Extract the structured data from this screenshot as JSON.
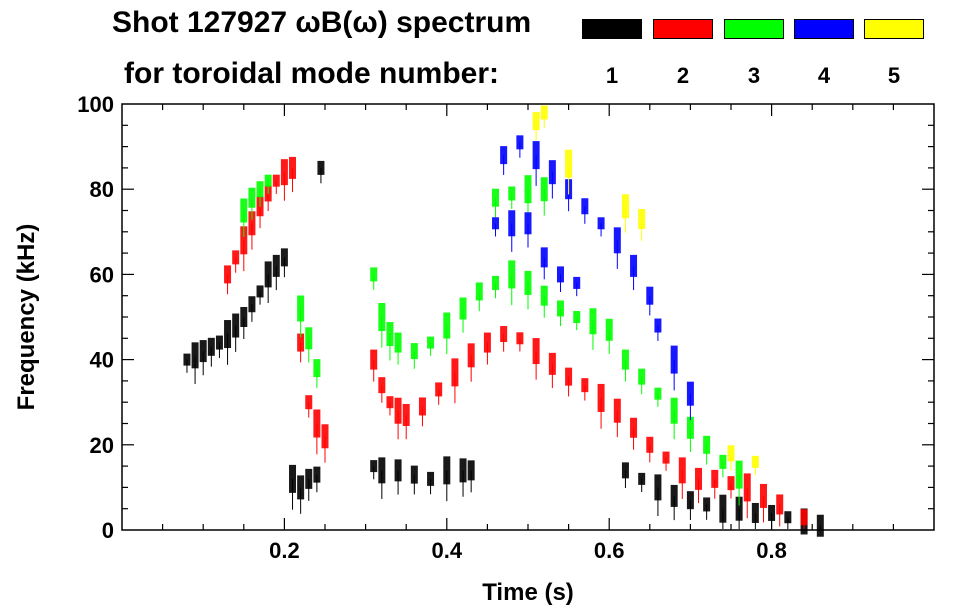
{
  "title": {
    "line1": "Shot 127927 ωB(ω) spectrum",
    "line2": "for toroidal mode number:"
  },
  "legend": [
    {
      "label": "1",
      "color": "#000000"
    },
    {
      "label": "2",
      "color": "#ff0000"
    },
    {
      "label": "3",
      "color": "#00ff00"
    },
    {
      "label": "4",
      "color": "#0000ff"
    },
    {
      "label": "5",
      "color": "#ffff00"
    }
  ],
  "chart_data": {
    "type": "scatter",
    "title": "Shot 127927 ωB(ω) spectrum for toroidal mode number",
    "xlabel": "Time (s)",
    "ylabel": "Frequency (kHz)",
    "xlim": [
      0.0,
      1.0
    ],
    "ylim": [
      0,
      100
    ],
    "xticks": [
      0.2,
      0.4,
      0.6,
      0.8
    ],
    "xtick_labels": [
      "0.2",
      "0.4",
      "0.6",
      "0.8"
    ],
    "yticks": [
      0,
      20,
      40,
      60,
      80,
      100
    ],
    "ytick_labels": [
      "0",
      "20",
      "40",
      "60",
      "80",
      "100"
    ],
    "series": [
      {
        "name": "1",
        "color": "#000000",
        "points": [
          [
            0.08,
            40
          ],
          [
            0.09,
            41
          ],
          [
            0.1,
            42
          ],
          [
            0.11,
            43
          ],
          [
            0.12,
            44
          ],
          [
            0.13,
            46
          ],
          [
            0.14,
            48
          ],
          [
            0.15,
            50
          ],
          [
            0.16,
            53
          ],
          [
            0.17,
            56
          ],
          [
            0.18,
            60
          ],
          [
            0.19,
            62
          ],
          [
            0.2,
            64
          ],
          [
            0.245,
            85
          ],
          [
            0.21,
            12
          ],
          [
            0.22,
            10
          ],
          [
            0.23,
            12
          ],
          [
            0.24,
            13
          ],
          [
            0.31,
            15
          ],
          [
            0.32,
            14
          ],
          [
            0.34,
            14
          ],
          [
            0.36,
            13
          ],
          [
            0.38,
            12
          ],
          [
            0.4,
            14
          ],
          [
            0.42,
            14
          ],
          [
            0.43,
            14
          ],
          [
            0.62,
            14
          ],
          [
            0.64,
            12
          ],
          [
            0.66,
            10
          ],
          [
            0.68,
            8
          ],
          [
            0.7,
            7
          ],
          [
            0.72,
            6
          ],
          [
            0.74,
            5
          ],
          [
            0.76,
            5
          ],
          [
            0.78,
            4
          ],
          [
            0.8,
            4
          ],
          [
            0.82,
            3
          ],
          [
            0.84,
            2
          ],
          [
            0.86,
            1
          ]
        ]
      },
      {
        "name": "2",
        "color": "#ff0000",
        "points": [
          [
            0.13,
            60
          ],
          [
            0.14,
            64
          ],
          [
            0.15,
            68
          ],
          [
            0.16,
            72
          ],
          [
            0.17,
            76
          ],
          [
            0.18,
            79
          ],
          [
            0.19,
            82
          ],
          [
            0.2,
            84
          ],
          [
            0.21,
            85
          ],
          [
            0.22,
            44
          ],
          [
            0.23,
            30
          ],
          [
            0.24,
            25
          ],
          [
            0.25,
            22
          ],
          [
            0.31,
            40
          ],
          [
            0.32,
            34
          ],
          [
            0.33,
            30
          ],
          [
            0.34,
            28
          ],
          [
            0.35,
            27
          ],
          [
            0.37,
            29
          ],
          [
            0.39,
            33
          ],
          [
            0.41,
            37
          ],
          [
            0.43,
            41
          ],
          [
            0.45,
            44
          ],
          [
            0.47,
            46
          ],
          [
            0.49,
            45
          ],
          [
            0.51,
            42
          ],
          [
            0.53,
            39
          ],
          [
            0.55,
            36
          ],
          [
            0.57,
            34
          ],
          [
            0.59,
            31
          ],
          [
            0.61,
            28
          ],
          [
            0.63,
            24
          ],
          [
            0.65,
            20
          ],
          [
            0.67,
            17
          ],
          [
            0.69,
            14
          ],
          [
            0.71,
            12
          ],
          [
            0.73,
            12
          ],
          [
            0.75,
            11
          ],
          [
            0.77,
            10
          ],
          [
            0.79,
            8
          ],
          [
            0.81,
            6
          ],
          [
            0.84,
            3
          ]
        ]
      },
      {
        "name": "3",
        "color": "#00ff00",
        "points": [
          [
            0.15,
            75
          ],
          [
            0.16,
            78
          ],
          [
            0.17,
            80
          ],
          [
            0.18,
            82
          ],
          [
            0.22,
            52
          ],
          [
            0.23,
            45
          ],
          [
            0.24,
            38
          ],
          [
            0.31,
            60
          ],
          [
            0.32,
            50
          ],
          [
            0.33,
            46
          ],
          [
            0.34,
            44
          ],
          [
            0.36,
            42
          ],
          [
            0.38,
            44
          ],
          [
            0.4,
            48
          ],
          [
            0.42,
            52
          ],
          [
            0.44,
            56
          ],
          [
            0.46,
            58
          ],
          [
            0.48,
            60
          ],
          [
            0.5,
            58
          ],
          [
            0.52,
            55
          ],
          [
            0.54,
            52
          ],
          [
            0.56,
            50
          ],
          [
            0.58,
            49
          ],
          [
            0.6,
            47
          ],
          [
            0.46,
            78
          ],
          [
            0.48,
            79
          ],
          [
            0.5,
            80
          ],
          [
            0.52,
            80
          ],
          [
            0.62,
            40
          ],
          [
            0.64,
            36
          ],
          [
            0.66,
            32
          ],
          [
            0.68,
            28
          ],
          [
            0.7,
            24
          ],
          [
            0.72,
            20
          ],
          [
            0.74,
            16
          ],
          [
            0.76,
            13
          ]
        ]
      },
      {
        "name": "4",
        "color": "#0000ff",
        "points": [
          [
            0.46,
            72
          ],
          [
            0.48,
            72
          ],
          [
            0.5,
            72
          ],
          [
            0.47,
            88
          ],
          [
            0.49,
            91
          ],
          [
            0.51,
            88
          ],
          [
            0.53,
            84
          ],
          [
            0.55,
            80
          ],
          [
            0.57,
            76
          ],
          [
            0.59,
            72
          ],
          [
            0.61,
            68
          ],
          [
            0.63,
            62
          ],
          [
            0.65,
            55
          ],
          [
            0.66,
            48
          ],
          [
            0.68,
            40
          ],
          [
            0.7,
            32
          ],
          [
            0.52,
            64
          ],
          [
            0.54,
            60
          ],
          [
            0.56,
            58
          ]
        ]
      },
      {
        "name": "5",
        "color": "#ffff00",
        "points": [
          [
            0.51,
            96
          ],
          [
            0.52,
            98
          ],
          [
            0.55,
            86
          ],
          [
            0.62,
            76
          ],
          [
            0.64,
            73
          ],
          [
            0.75,
            18
          ],
          [
            0.78,
            16
          ]
        ]
      }
    ]
  }
}
